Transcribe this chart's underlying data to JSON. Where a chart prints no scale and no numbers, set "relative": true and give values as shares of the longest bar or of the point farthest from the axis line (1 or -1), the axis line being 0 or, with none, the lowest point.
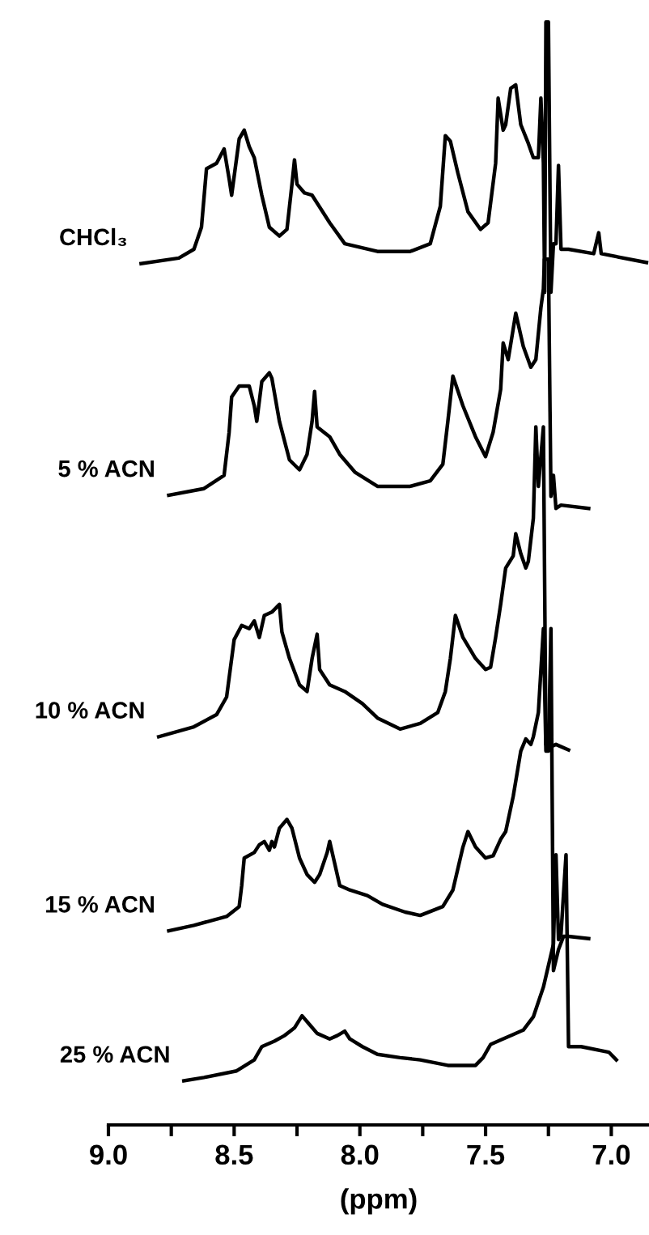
{
  "chart_data": {
    "type": "line",
    "relative": true,
    "xlabel": "(ppm)",
    "xlim": [
      9.0,
      6.85
    ],
    "xticks": [
      {
        "value": 9.0,
        "label": "9.0"
      },
      {
        "value": 8.75,
        "label": null
      },
      8.5,
      {
        "value": 8.25,
        "label": null
      },
      {
        "value": 8.0,
        "label": "8.0"
      },
      {
        "value": 7.75,
        "label": null
      },
      7.5,
      {
        "value": 7.25,
        "label": null
      },
      {
        "value": 7.0,
        "label": "7.0"
      }
    ],
    "grid": false,
    "legend": false,
    "marker": "none",
    "line_style": "solid",
    "tick_labels": "x",
    "series": [
      {
        "name": "CHCl₃",
        "color": "#000000",
        "x": [
          8.87,
          8.72,
          8.66,
          8.63,
          8.61,
          8.57,
          8.54,
          8.52,
          8.51,
          8.49,
          8.48,
          8.46,
          8.44,
          8.42,
          8.39,
          8.36,
          8.32,
          8.29,
          8.27,
          8.26,
          8.25,
          8.22,
          8.19,
          8.12,
          8.06,
          7.93,
          7.8,
          7.72,
          7.68,
          7.66,
          7.64,
          7.61,
          7.57,
          7.52,
          7.49,
          7.46,
          7.45,
          7.43,
          7.42,
          7.4,
          7.38,
          7.36,
          7.33,
          7.31,
          7.29,
          7.28,
          7.27,
          7.265,
          7.26,
          7.25,
          7.24,
          7.23,
          7.22,
          7.21,
          7.2,
          7.17,
          7.07,
          7.05,
          7.04,
          6.86
        ],
        "values": [
          0.781,
          0.786,
          0.794,
          0.814,
          0.867,
          0.872,
          0.885,
          0.858,
          0.843,
          0.877,
          0.894,
          0.902,
          0.887,
          0.877,
          0.843,
          0.814,
          0.806,
          0.812,
          0.853,
          0.875,
          0.853,
          0.845,
          0.843,
          0.818,
          0.799,
          0.792,
          0.792,
          0.799,
          0.833,
          0.897,
          0.892,
          0.863,
          0.828,
          0.812,
          0.818,
          0.872,
          0.931,
          0.902,
          0.907,
          0.94,
          0.943,
          0.907,
          0.89,
          0.877,
          0.877,
          0.931,
          0.872,
          0.755,
          1.0,
          1.0,
          0.755,
          0.799,
          0.799,
          0.87,
          0.794,
          0.794,
          0.79,
          0.809,
          0.79,
          0.782
        ]
      },
      {
        "name": "5 % ACN",
        "color": "#000000",
        "x": [
          8.76,
          8.62,
          8.54,
          8.52,
          8.51,
          8.48,
          8.44,
          8.42,
          8.41,
          8.39,
          8.36,
          8.35,
          8.32,
          8.28,
          8.24,
          8.21,
          8.19,
          8.18,
          8.17,
          8.12,
          8.08,
          8.02,
          7.93,
          7.8,
          7.72,
          7.67,
          7.65,
          7.63,
          7.59,
          7.54,
          7.5,
          7.47,
          7.44,
          7.43,
          7.41,
          7.38,
          7.35,
          7.32,
          7.3,
          7.28,
          7.27,
          7.266,
          7.25,
          7.24,
          7.23,
          7.22,
          7.2,
          7.09
        ],
        "values": [
          0.571,
          0.577,
          0.589,
          0.628,
          0.66,
          0.67,
          0.67,
          0.652,
          0.638,
          0.674,
          0.682,
          0.677,
          0.638,
          0.603,
          0.594,
          0.608,
          0.638,
          0.665,
          0.633,
          0.624,
          0.608,
          0.592,
          0.579,
          0.579,
          0.584,
          0.599,
          0.638,
          0.679,
          0.652,
          0.624,
          0.606,
          0.628,
          0.667,
          0.709,
          0.694,
          0.736,
          0.706,
          0.687,
          0.694,
          0.741,
          0.758,
          0.785,
          0.785,
          0.57,
          0.589,
          0.559,
          0.562,
          0.559
        ]
      },
      {
        "name": "10 % ACN",
        "color": "#000000",
        "x": [
          8.8,
          8.66,
          8.57,
          8.53,
          8.5,
          8.47,
          8.44,
          8.42,
          8.4,
          8.38,
          8.35,
          8.32,
          8.31,
          8.28,
          8.24,
          8.21,
          8.19,
          8.17,
          8.16,
          8.12,
          8.06,
          7.99,
          7.93,
          7.84,
          7.76,
          7.69,
          7.66,
          7.64,
          7.62,
          7.59,
          7.54,
          7.5,
          7.48,
          7.46,
          7.44,
          7.42,
          7.39,
          7.38,
          7.36,
          7.34,
          7.33,
          7.31,
          7.3,
          7.29,
          7.27,
          7.26,
          7.25,
          7.22,
          7.17
        ],
        "values": [
          0.352,
          0.361,
          0.372,
          0.388,
          0.44,
          0.453,
          0.45,
          0.457,
          0.442,
          0.462,
          0.465,
          0.472,
          0.447,
          0.423,
          0.399,
          0.393,
          0.423,
          0.445,
          0.413,
          0.399,
          0.393,
          0.382,
          0.369,
          0.359,
          0.364,
          0.374,
          0.393,
          0.423,
          0.462,
          0.442,
          0.423,
          0.413,
          0.415,
          0.442,
          0.472,
          0.505,
          0.516,
          0.536,
          0.518,
          0.505,
          0.511,
          0.55,
          0.633,
          0.579,
          0.633,
          0.345,
          0.342,
          0.345,
          0.34
        ]
      },
      {
        "name": "15 % ACN",
        "color": "#000000",
        "x": [
          8.76,
          8.66,
          8.53,
          8.48,
          8.47,
          8.46,
          8.42,
          8.4,
          8.38,
          8.36,
          8.35,
          8.34,
          8.32,
          8.29,
          8.27,
          8.24,
          8.21,
          8.18,
          8.16,
          8.13,
          8.12,
          8.1,
          8.08,
          8.04,
          7.97,
          7.91,
          7.82,
          7.76,
          7.67,
          7.63,
          7.59,
          7.57,
          7.54,
          7.5,
          7.47,
          7.44,
          7.42,
          7.39,
          7.36,
          7.34,
          7.32,
          7.31,
          7.29,
          7.27,
          7.26,
          7.25,
          7.24,
          7.23,
          7.21,
          7.19,
          7.17,
          7.09
        ],
        "values": [
          0.176,
          0.181,
          0.189,
          0.198,
          0.217,
          0.242,
          0.247,
          0.254,
          0.257,
          0.249,
          0.257,
          0.252,
          0.269,
          0.277,
          0.269,
          0.242,
          0.227,
          0.22,
          0.227,
          0.247,
          0.257,
          0.237,
          0.217,
          0.213,
          0.208,
          0.2,
          0.193,
          0.19,
          0.198,
          0.213,
          0.252,
          0.266,
          0.252,
          0.242,
          0.244,
          0.259,
          0.266,
          0.298,
          0.339,
          0.35,
          0.345,
          0.352,
          0.374,
          0.45,
          0.339,
          0.339,
          0.45,
          0.14,
          0.159,
          0.171,
          0.171,
          0.169
        ]
      },
      {
        "name": "25 % ACN",
        "color": "#000000",
        "x": [
          8.7,
          8.62,
          8.49,
          8.42,
          8.39,
          8.34,
          8.3,
          8.26,
          8.23,
          8.2,
          8.17,
          8.12,
          8.09,
          8.06,
          8.04,
          7.99,
          7.93,
          7.84,
          7.76,
          7.65,
          7.54,
          7.51,
          7.48,
          7.44,
          7.39,
          7.35,
          7.31,
          7.27,
          7.23,
          7.22,
          7.21,
          7.2,
          7.18,
          7.17,
          7.12,
          7.01,
          6.98
        ],
        "values": [
          0.04,
          0.043,
          0.049,
          0.059,
          0.071,
          0.076,
          0.081,
          0.088,
          0.099,
          0.091,
          0.083,
          0.078,
          0.081,
          0.085,
          0.078,
          0.071,
          0.064,
          0.061,
          0.059,
          0.054,
          0.054,
          0.061,
          0.073,
          0.077,
          0.082,
          0.086,
          0.098,
          0.125,
          0.164,
          0.245,
          0.168,
          0.173,
          0.245,
          0.071,
          0.071,
          0.066,
          0.059
        ]
      }
    ]
  }
}
